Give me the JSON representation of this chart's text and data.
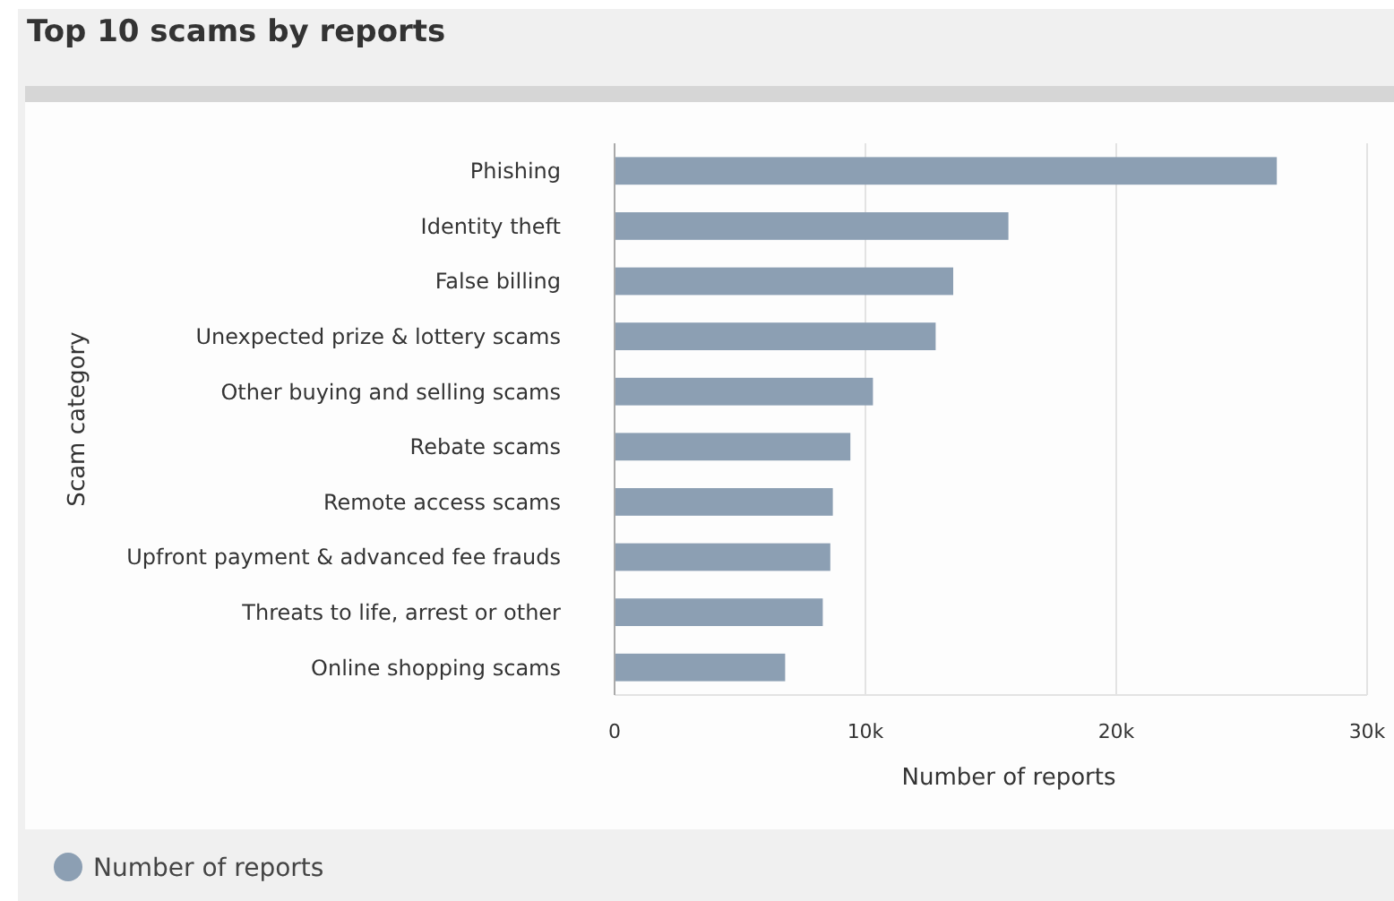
{
  "chart_data": {
    "type": "bar",
    "title": "Top 10 scams by reports",
    "orientation": "horizontal",
    "categories": [
      "Phishing",
      "Identity theft",
      "False billing",
      "Unexpected prize & lottery scams",
      "Other buying and selling scams",
      "Rebate scams",
      "Remote access scams",
      "Upfront payment & advanced fee frauds",
      "Threats to life, arrest or other",
      "Online shopping scams"
    ],
    "series": [
      {
        "name": "Number of reports",
        "color": "#8c9fb3",
        "values": [
          26400,
          15700,
          13500,
          12800,
          10300,
          9400,
          8700,
          8600,
          8300,
          6800
        ]
      }
    ],
    "xlim": [
      0,
      30000
    ],
    "xticks": [
      0,
      {
        "value": 10000,
        "label": "10k"
      },
      {
        "value": 20000,
        "label": "20k"
      },
      {
        "value": 30000,
        "label": "30k"
      }
    ],
    "xlabel": "Number of reports",
    "ylabel": "Scam category",
    "grid": "x",
    "legend": "bottom"
  }
}
